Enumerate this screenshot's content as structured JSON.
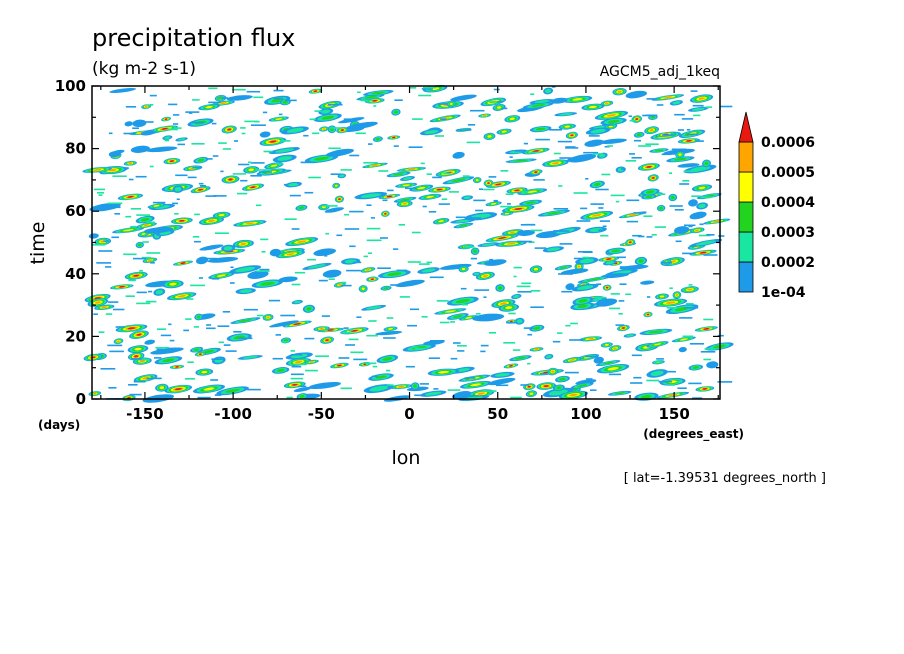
{
  "chart_data": {
    "type": "heatmap",
    "title": "precipitation flux",
    "subtitle": "(kg m-2 s-1)",
    "run_name": "AGCM5_adj_1keq",
    "xlabel": "lon",
    "xunit": "(degrees_east)",
    "ylabel": "time",
    "yunit": "(days)",
    "note": "[ lat=-1.39531 degrees_north ]",
    "xlim": [
      -180,
      176
    ],
    "ylim": [
      0,
      100
    ],
    "x_ticks": [
      -150,
      -100,
      -50,
      0,
      50,
      100,
      150
    ],
    "x_tick_labels": [
      "-150",
      "-100",
      "-50",
      "0",
      "50",
      "100",
      "150"
    ],
    "y_ticks": [
      0,
      20,
      40,
      60,
      80,
      100
    ],
    "y_tick_labels": [
      "0",
      "20",
      "40",
      "60",
      "80",
      "100"
    ],
    "grid": false,
    "legend_position": "right",
    "colorbar": {
      "levels": [
        0.0001,
        0.0002,
        0.0003,
        0.0004,
        0.0005,
        0.0006
      ],
      "labels": [
        "1e-04",
        "0.0002",
        "0.0003",
        "0.0004",
        "0.0005",
        "0.0006"
      ],
      "colors": [
        "#1e9be8",
        "#19e6a0",
        "#22d31f",
        "#ffff00",
        "#ffa500",
        "#e8190f"
      ],
      "extend": "max"
    }
  }
}
